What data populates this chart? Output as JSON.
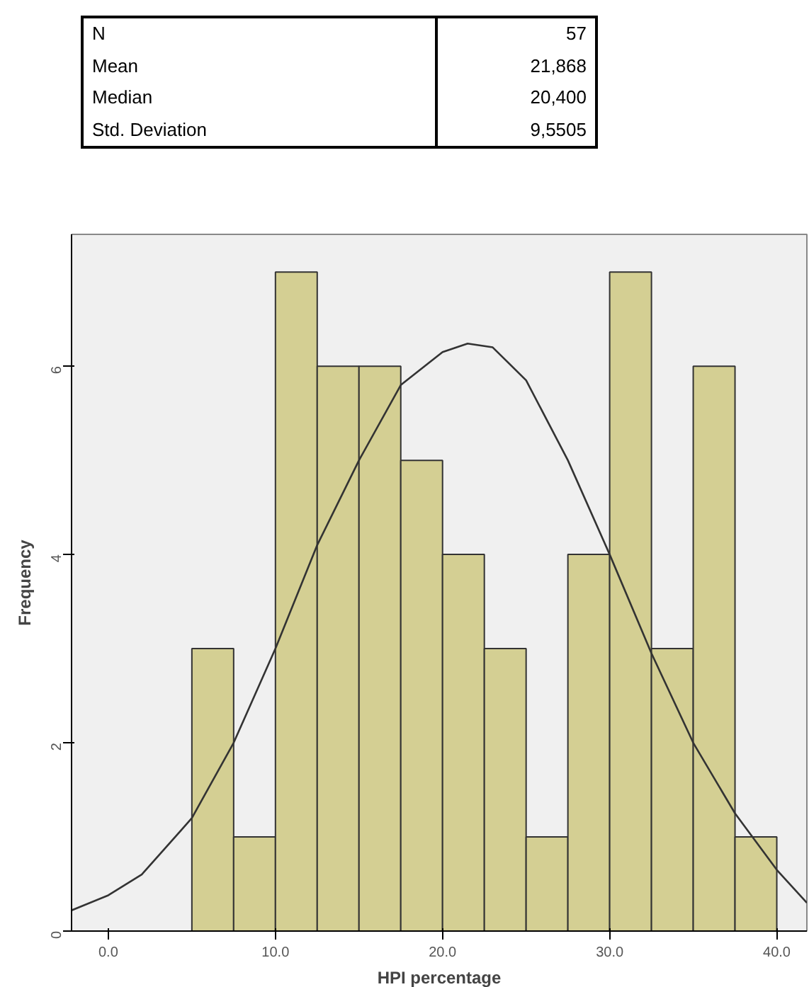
{
  "chart_data": {
    "type": "histogram",
    "xlabel": "HPI percentage",
    "ylabel": "Frequency",
    "annotations": [
      "N",
      "57",
      "Mean",
      "21,868",
      "Median",
      "20,400",
      "Std. Deviation",
      "9,5505"
    ],
    "bins": [
      5,
      7.5,
      10,
      12.5,
      15,
      17.5,
      20,
      22.5,
      25,
      27.5,
      30,
      32.5,
      35,
      37.5,
      40
    ],
    "values": [
      3,
      1,
      7,
      6,
      6,
      5,
      4,
      3,
      1,
      4,
      7,
      3,
      6,
      1
    ],
    "color": "#d4cf93",
    "series": [
      {
        "type": "line",
        "color": "#333333",
        "x": [
          -2.2,
          0,
          2,
          5,
          7.5,
          10,
          12.5,
          15,
          17.5,
          20,
          21.5,
          23,
          25,
          27.5,
          30,
          32.5,
          35,
          37.5,
          40,
          41.8
        ],
        "values": [
          0.22,
          0.38,
          0.6,
          1.2,
          2.0,
          3.0,
          4.1,
          5.0,
          5.8,
          6.15,
          6.24,
          6.2,
          5.85,
          5.0,
          4.0,
          2.95,
          2.0,
          1.25,
          0.65,
          0.3
        ]
      }
    ],
    "xlim": [
      -2.2,
      41.8
    ],
    "ylim": [
      0,
      7.4
    ],
    "xticks": [
      {
        "value": 0,
        "label": "0.0"
      },
      {
        "value": 10,
        "label": "10.0"
      },
      {
        "value": 20,
        "label": "20.0"
      },
      {
        "value": 30,
        "label": "30.0"
      },
      {
        "value": 40,
        "label": "40.0"
      }
    ],
    "yticks": [
      0,
      2,
      4,
      6
    ],
    "grid": false
  }
}
